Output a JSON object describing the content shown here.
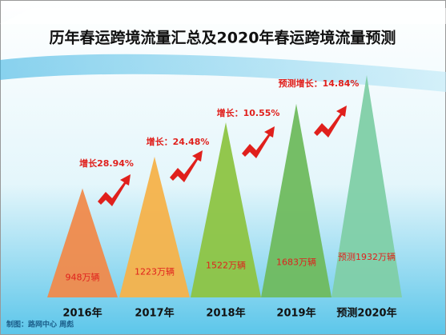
{
  "chart_data": {
    "type": "triangle",
    "title": "历年春运跨境流量汇总及2020年春运跨境流量预测",
    "categories": [
      "2016年",
      "2017年",
      "2018年",
      "2019年",
      "预测2020年"
    ],
    "values": [
      948,
      1223,
      1522,
      1683,
      1932
    ],
    "value_labels": [
      "948万辆",
      "1223万辆",
      "1522万辆",
      "1683万辆",
      "预测1932万辆"
    ],
    "colors": [
      "#f08a4b",
      "#f5b24a",
      "#8dc443",
      "#6fbb5e",
      "#7fcfa6"
    ],
    "annotations": [
      "增长28.94%",
      "增长：24.48%",
      "增长：10.55%",
      "预测增长：14.84%"
    ],
    "credit": "制图：路网中心 周彪"
  }
}
